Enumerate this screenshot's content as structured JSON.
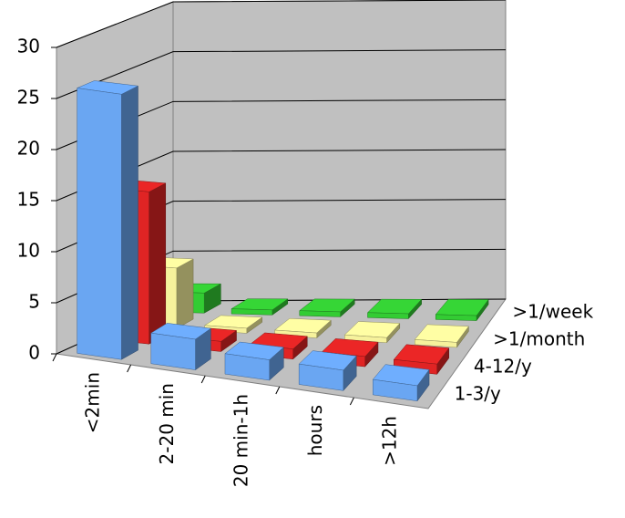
{
  "chart_data": {
    "type": "bar3d",
    "categories": [
      "<2min",
      "2-20 min",
      "20 min-1h",
      "hours",
      ">12h"
    ],
    "series": [
      {
        "name": "1-3/y",
        "color": "#6aa6f2",
        "values": [
          26,
          3,
          2,
          2,
          1.5
        ]
      },
      {
        "name": "4-12/y",
        "color": "#e02424",
        "values": [
          15,
          1,
          1,
          1,
          1
        ]
      },
      {
        "name": ">1/month",
        "color": "#f6f29c",
        "values": [
          6,
          0.5,
          0.5,
          0.5,
          0.5
        ]
      },
      {
        "name": ">1/week",
        "color": "#33cc33",
        "values": [
          2,
          0.5,
          0.5,
          0.5,
          0.5
        ]
      }
    ],
    "ylim": [
      0,
      30
    ],
    "yticks": [
      0,
      5,
      10,
      15,
      20,
      25,
      30
    ],
    "grid": true
  }
}
